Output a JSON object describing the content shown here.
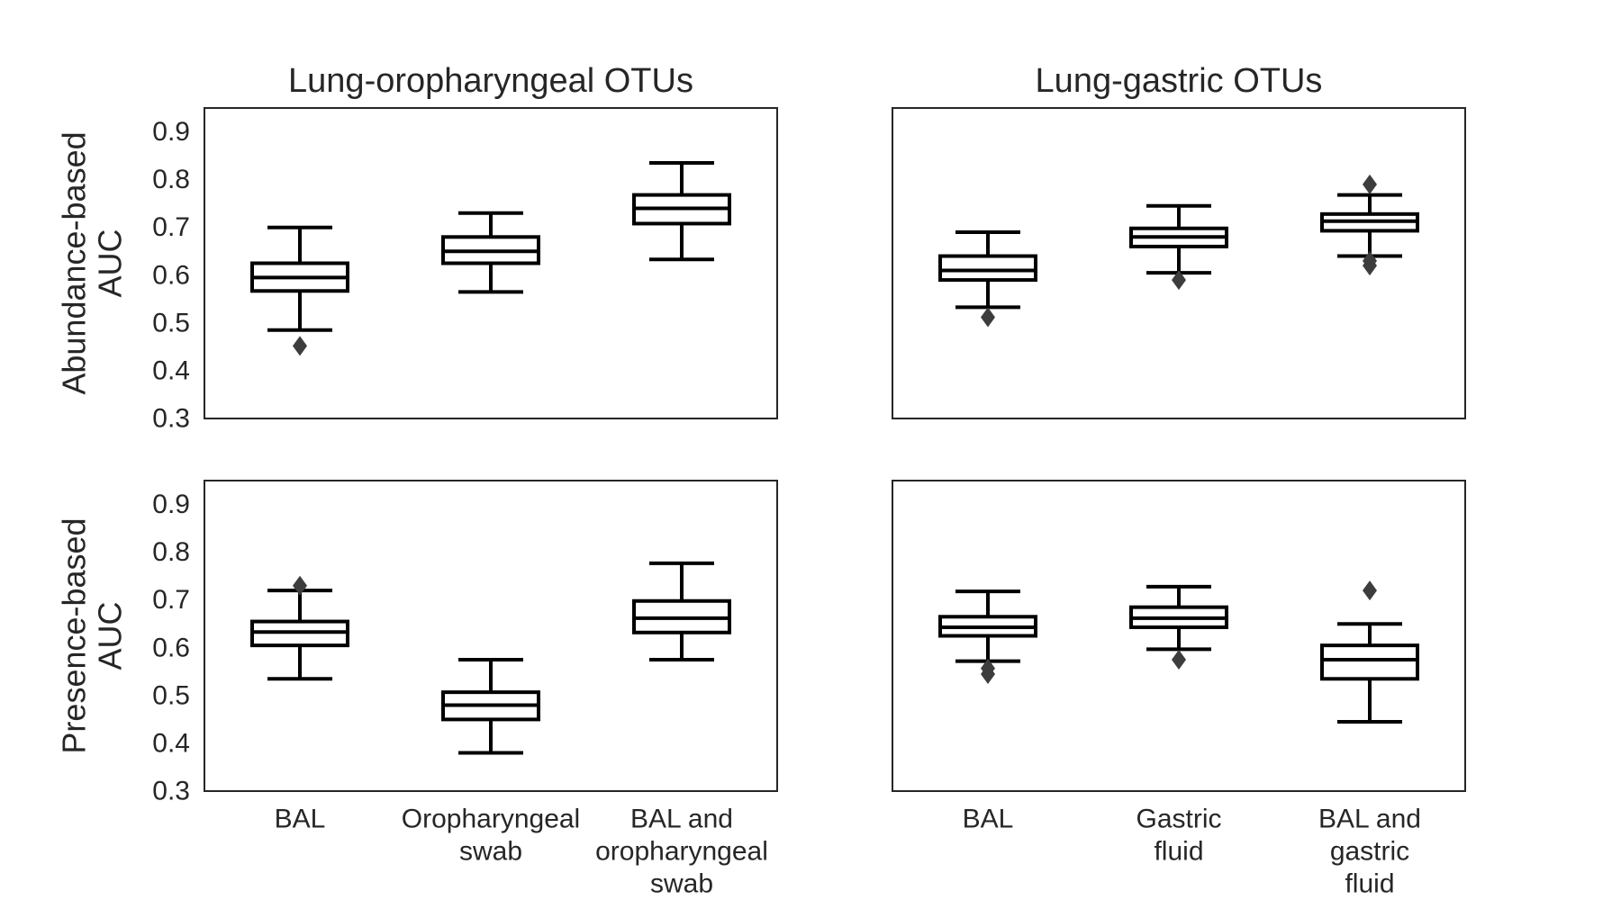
{
  "chart_data": [
    {
      "type": "box",
      "title": "Lung-oropharyngeal OTUs",
      "ylabel": [
        "Abundance-based",
        "AUC"
      ],
      "ylim": [
        0.3,
        0.95
      ],
      "yticks": [
        "0.3",
        "0.4",
        "0.5",
        "0.6",
        "0.7",
        "0.8",
        "0.9"
      ],
      "categories": [
        [
          "BAL"
        ],
        [
          "Oropharyngeal",
          "swab"
        ],
        [
          "BAL and",
          "oropharyngeal",
          "swab"
        ]
      ],
      "show_yticks": true,
      "show_xticks": false,
      "boxes": [
        {
          "whislo": 0.485,
          "q1": 0.567,
          "med": 0.595,
          "q3": 0.625,
          "whishi": 0.7,
          "fliers": [
            0.452
          ]
        },
        {
          "whislo": 0.565,
          "q1": 0.625,
          "med": 0.65,
          "q3": 0.68,
          "whishi": 0.73,
          "fliers": []
        },
        {
          "whislo": 0.633,
          "q1": 0.708,
          "med": 0.74,
          "q3": 0.768,
          "whishi": 0.835,
          "fliers": []
        }
      ]
    },
    {
      "type": "box",
      "title": "Lung-gastric OTUs",
      "ylim": [
        0.3,
        0.95
      ],
      "categories": [
        [
          "BAL"
        ],
        [
          "Gastric",
          "fluid"
        ],
        [
          "BAL and",
          "gastric",
          "fluid"
        ]
      ],
      "show_yticks": false,
      "show_xticks": false,
      "boxes": [
        {
          "whislo": 0.533,
          "q1": 0.59,
          "med": 0.61,
          "q3": 0.64,
          "whishi": 0.69,
          "fliers": [
            0.512
          ]
        },
        {
          "whislo": 0.605,
          "q1": 0.66,
          "med": 0.68,
          "q3": 0.698,
          "whishi": 0.745,
          "fliers": [
            0.59
          ]
        },
        {
          "whislo": 0.64,
          "q1": 0.693,
          "med": 0.713,
          "q3": 0.728,
          "whishi": 0.768,
          "fliers": [
            0.79,
            0.63,
            0.62
          ]
        }
      ]
    },
    {
      "type": "box",
      "ylabel": [
        "Presence-based",
        "AUC"
      ],
      "ylim": [
        0.3,
        0.95
      ],
      "yticks": [
        "0.3",
        "0.4",
        "0.5",
        "0.6",
        "0.7",
        "0.8",
        "0.9"
      ],
      "categories": [
        [
          "BAL"
        ],
        [
          "Oropharyngeal",
          "swab"
        ],
        [
          "BAL and",
          "oropharyngeal",
          "swab"
        ]
      ],
      "show_yticks": true,
      "show_xticks": true,
      "boxes": [
        {
          "whislo": 0.535,
          "q1": 0.605,
          "med": 0.633,
          "q3": 0.655,
          "whishi": 0.72,
          "fliers": [
            0.73
          ]
        },
        {
          "whislo": 0.38,
          "q1": 0.45,
          "med": 0.48,
          "q3": 0.507,
          "whishi": 0.575,
          "fliers": []
        },
        {
          "whislo": 0.575,
          "q1": 0.632,
          "med": 0.662,
          "q3": 0.698,
          "whishi": 0.777,
          "fliers": []
        }
      ]
    },
    {
      "type": "box",
      "ylim": [
        0.3,
        0.95
      ],
      "categories": [
        [
          "BAL"
        ],
        [
          "Gastric",
          "fluid"
        ],
        [
          "BAL and",
          "gastric",
          "fluid"
        ]
      ],
      "show_yticks": false,
      "show_xticks": true,
      "boxes": [
        {
          "whislo": 0.572,
          "q1": 0.625,
          "med": 0.643,
          "q3": 0.665,
          "whishi": 0.718,
          "fliers": [
            0.557,
            0.545
          ]
        },
        {
          "whislo": 0.597,
          "q1": 0.643,
          "med": 0.662,
          "q3": 0.685,
          "whishi": 0.728,
          "fliers": [
            0.575
          ]
        },
        {
          "whislo": 0.445,
          "q1": 0.535,
          "med": 0.575,
          "q3": 0.605,
          "whishi": 0.65,
          "fliers": [
            0.72
          ]
        }
      ]
    }
  ]
}
